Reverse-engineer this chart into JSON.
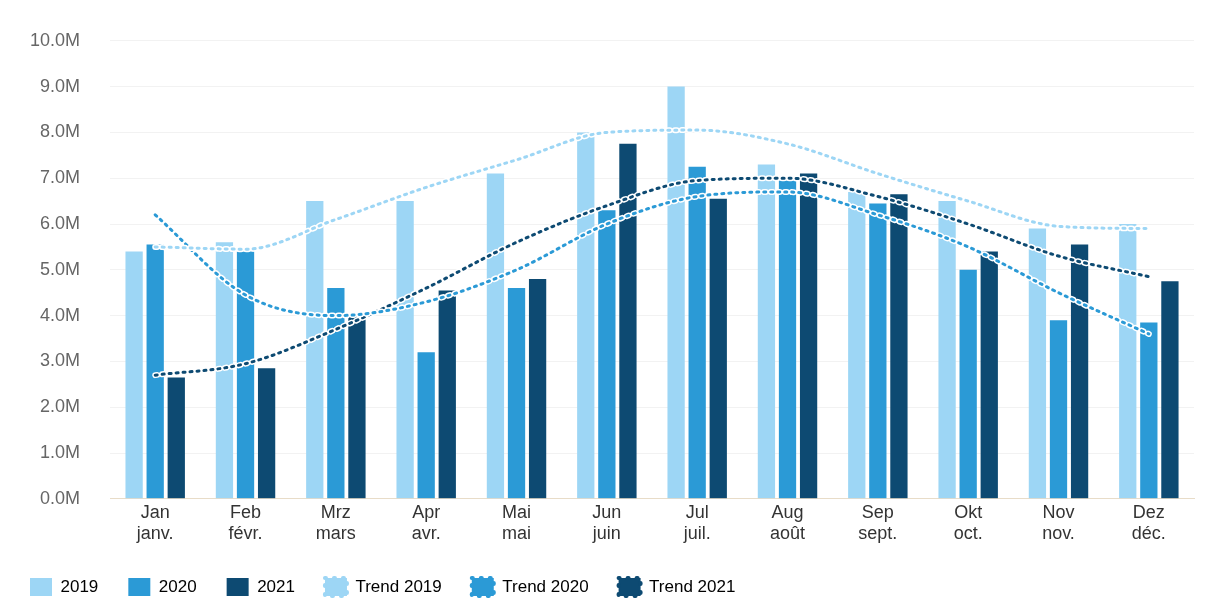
{
  "chart_data": {
    "type": "bar",
    "categories": [
      "Jan\njanv.",
      "Feb\nfévr.",
      "Mrz\nmars",
      "Apr\navr.",
      "Mai\nmai",
      "Jun\njuin",
      "Jul\njuil.",
      "Aug\naoût",
      "Sep\nsept.",
      "Okt\noct.",
      "Nov\nnov.",
      "Dez\ndéc."
    ],
    "series": [
      {
        "name": "2019",
        "color": "#9dd6f5",
        "values": [
          5.4,
          5.6,
          6.5,
          6.5,
          7.1,
          8.0,
          9.0,
          7.3,
          6.7,
          6.5,
          5.9,
          6.0
        ]
      },
      {
        "name": "2020",
        "color": "#2b9ad6",
        "values": [
          5.55,
          5.4,
          4.6,
          3.2,
          4.6,
          6.3,
          7.25,
          6.95,
          6.45,
          5.0,
          3.9,
          3.85
        ]
      },
      {
        "name": "2021",
        "color": "#0d4a72",
        "values": [
          2.65,
          2.85,
          4.0,
          4.55,
          4.8,
          7.75,
          6.55,
          7.1,
          6.65,
          5.4,
          5.55,
          4.75
        ]
      },
      {
        "name": "Trend 2019",
        "type": "line",
        "line_style": "dotted",
        "color": "#9dd6f5",
        "values": [
          5.5,
          5.45,
          6.1,
          6.8,
          7.4,
          8.0,
          8.05,
          7.75,
          7.1,
          6.5,
          5.95,
          5.9
        ]
      },
      {
        "name": "Trend 2020",
        "type": "line",
        "line_style": "dotted",
        "color": "#2b9ad6",
        "values": [
          6.2,
          4.45,
          4.0,
          4.3,
          5.0,
          6.0,
          6.6,
          6.7,
          6.2,
          5.5,
          4.5,
          3.6
        ]
      },
      {
        "name": "Trend 2021",
        "type": "line",
        "line_style": "dotted",
        "color": "#0d4a72",
        "values": [
          2.7,
          2.95,
          3.7,
          4.6,
          5.6,
          6.4,
          6.95,
          7.0,
          6.6,
          6.0,
          5.3,
          4.85
        ]
      }
    ],
    "ylim": [
      0,
      10
    ],
    "yticks": [
      {
        "value": 0,
        "label": "0.0M"
      },
      {
        "value": 1,
        "label": "1.0M"
      },
      {
        "value": 2,
        "label": "2.0M"
      },
      {
        "value": 3,
        "label": "3.0M"
      },
      {
        "value": 4,
        "label": "4.0M"
      },
      {
        "value": 5,
        "label": "5.0M"
      },
      {
        "value": 6,
        "label": "6.0M"
      },
      {
        "value": 7,
        "label": "7.0M"
      },
      {
        "value": 8,
        "label": "8.0M"
      },
      {
        "value": 9,
        "label": "9.0M"
      },
      {
        "value": 10,
        "label": "10.0M"
      }
    ],
    "grid": "y",
    "legend": "bottom left",
    "marker": "none"
  }
}
